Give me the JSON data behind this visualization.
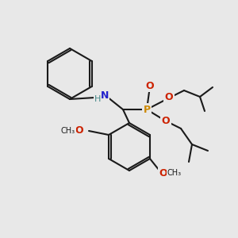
{
  "background_color": "#e8e8e8",
  "bond_color": "#1a1a1a",
  "bond_width": 1.5,
  "atom_labels": {
    "N": {
      "color": "#2222cc",
      "fontsize": 9,
      "fontweight": "bold"
    },
    "H": {
      "color": "#448888",
      "fontsize": 8,
      "fontweight": "normal"
    },
    "O": {
      "color": "#cc2200",
      "fontsize": 9,
      "fontweight": "bold"
    },
    "P": {
      "color": "#cc8800",
      "fontsize": 9,
      "fontweight": "bold"
    },
    "C": {
      "color": "#1a1a1a",
      "fontsize": 8,
      "fontweight": "normal"
    }
  }
}
